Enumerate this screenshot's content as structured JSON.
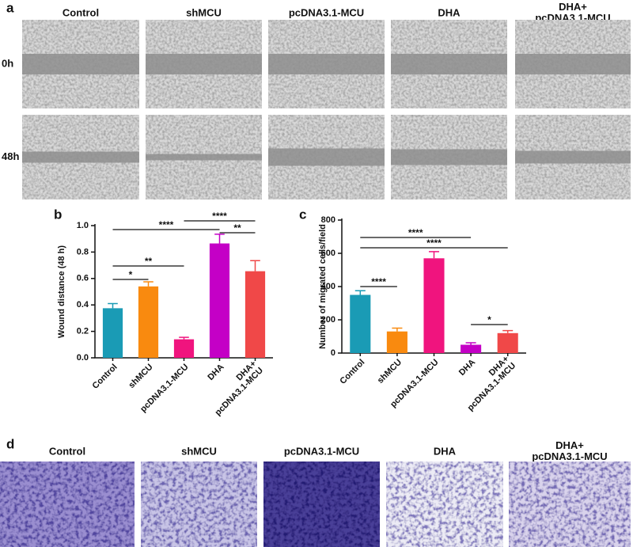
{
  "panel_a": {
    "label": "a",
    "rows": [
      "0h",
      "48h"
    ],
    "columns": [
      "Control",
      "shMCU",
      "pcDNA3.1-MCU",
      "DHA",
      "DHA+\npcDNA3.1-MCU"
    ]
  },
  "chart_data": [
    {
      "type": "bar",
      "panel_label": "b",
      "y_label": "Wound distance (48 h)",
      "categories": [
        "Control",
        "shMCU",
        "pcDNA3.1-MCU",
        "DHA",
        "DHA+\npcDNA3.1-MCU"
      ],
      "values": [
        0.375,
        0.54,
        0.14,
        0.865,
        0.655
      ],
      "errors": [
        0.035,
        0.035,
        0.015,
        0.07,
        0.08
      ],
      "colors": [
        "#1a9bb5",
        "#f98a0f",
        "#f0147e",
        "#c400c6",
        "#f04848"
      ],
      "ylim": [
        0,
        1
      ],
      "yticks": [
        {
          "value": 0,
          "label": "0.0"
        },
        {
          "value": 0.2,
          "label": "0.2"
        },
        {
          "value": 0.4,
          "label": "0.4"
        },
        {
          "value": 0.6,
          "label": "0.6"
        },
        {
          "value": 0.8,
          "label": "0.8"
        },
        {
          "value": 1,
          "label": "1.0"
        }
      ],
      "annotations": [
        "*",
        "**",
        "****",
        "****",
        "**"
      ]
    },
    {
      "type": "bar",
      "panel_label": "c",
      "y_label": "Number of migrated cells/field",
      "categories": [
        "Control",
        "shMCU",
        "pcDNA3.1-MCU",
        "DHA",
        "DHA+\npcDNA3.1-MCU"
      ],
      "values": [
        350,
        130,
        570,
        50,
        120
      ],
      "errors": [
        25,
        20,
        40,
        12,
        15
      ],
      "colors": [
        "#1a9bb5",
        "#f98a0f",
        "#f0147e",
        "#c400c6",
        "#f04848"
      ],
      "ylim": [
        0,
        800
      ],
      "yticks": [
        0,
        200,
        400,
        600,
        800
      ],
      "annotations": [
        "****",
        "****",
        "****",
        "*"
      ]
    }
  ],
  "panel_d": {
    "label": "d",
    "columns": [
      "Control",
      "shMCU",
      "pcDNA3.1-MCU",
      "DHA",
      "DHA+\npcDNA3.1-MCU"
    ]
  }
}
